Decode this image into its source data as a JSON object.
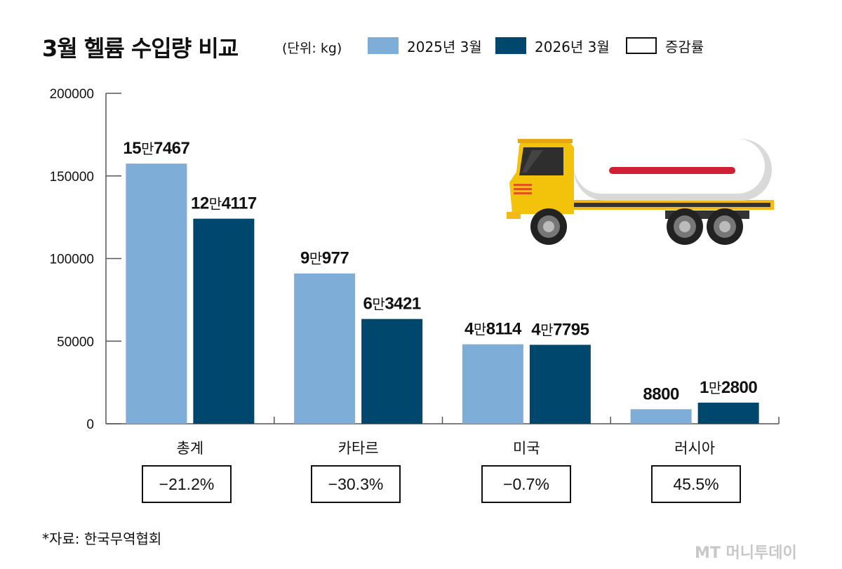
{
  "title": "3월 헬륨 수입량 비교",
  "unit": "(단위: kg)",
  "legend": [
    {
      "label": "2025년 3월",
      "color": "#7eadd8",
      "border": "#7eadd8"
    },
    {
      "label": "2026년 3월",
      "color": "#00476e",
      "border": "#00476e"
    },
    {
      "label": "증감률",
      "color": "#ffffff",
      "border": "#111111"
    }
  ],
  "chart_data": {
    "type": "bar",
    "title": "3월 헬륨 수입량 비교",
    "unit": "(단위: kg)",
    "ylim": [
      0,
      200000
    ],
    "yticks": [
      0,
      50000,
      100000,
      150000,
      200000
    ],
    "categories": [
      "총계",
      "카타르",
      "미국",
      "러시아"
    ],
    "series": [
      {
        "name": "2025년 3월",
        "color": "#7eadd8",
        "values": [
          157467,
          90977,
          48114,
          8800
        ],
        "labels": [
          [
            "15",
            "7467"
          ],
          [
            "9",
            "977"
          ],
          [
            "4",
            "8114"
          ],
          [
            "",
            "8800"
          ]
        ]
      },
      {
        "name": "2026년 3월",
        "color": "#00476e",
        "values": [
          124117,
          63421,
          47795,
          12800
        ],
        "labels": [
          [
            "12",
            "4117"
          ],
          [
            "6",
            "3421"
          ],
          [
            "4",
            "7795"
          ],
          [
            "1",
            "2800"
          ]
        ]
      }
    ],
    "change_rates": [
      "−21.2%",
      "−30.3%",
      "−0.7%",
      "45.5%"
    ],
    "man_unit": "만"
  },
  "source": "*자료: 한국무역협회",
  "watermark": "MT 머니투데이",
  "illustration": "tanker-truck-icon"
}
